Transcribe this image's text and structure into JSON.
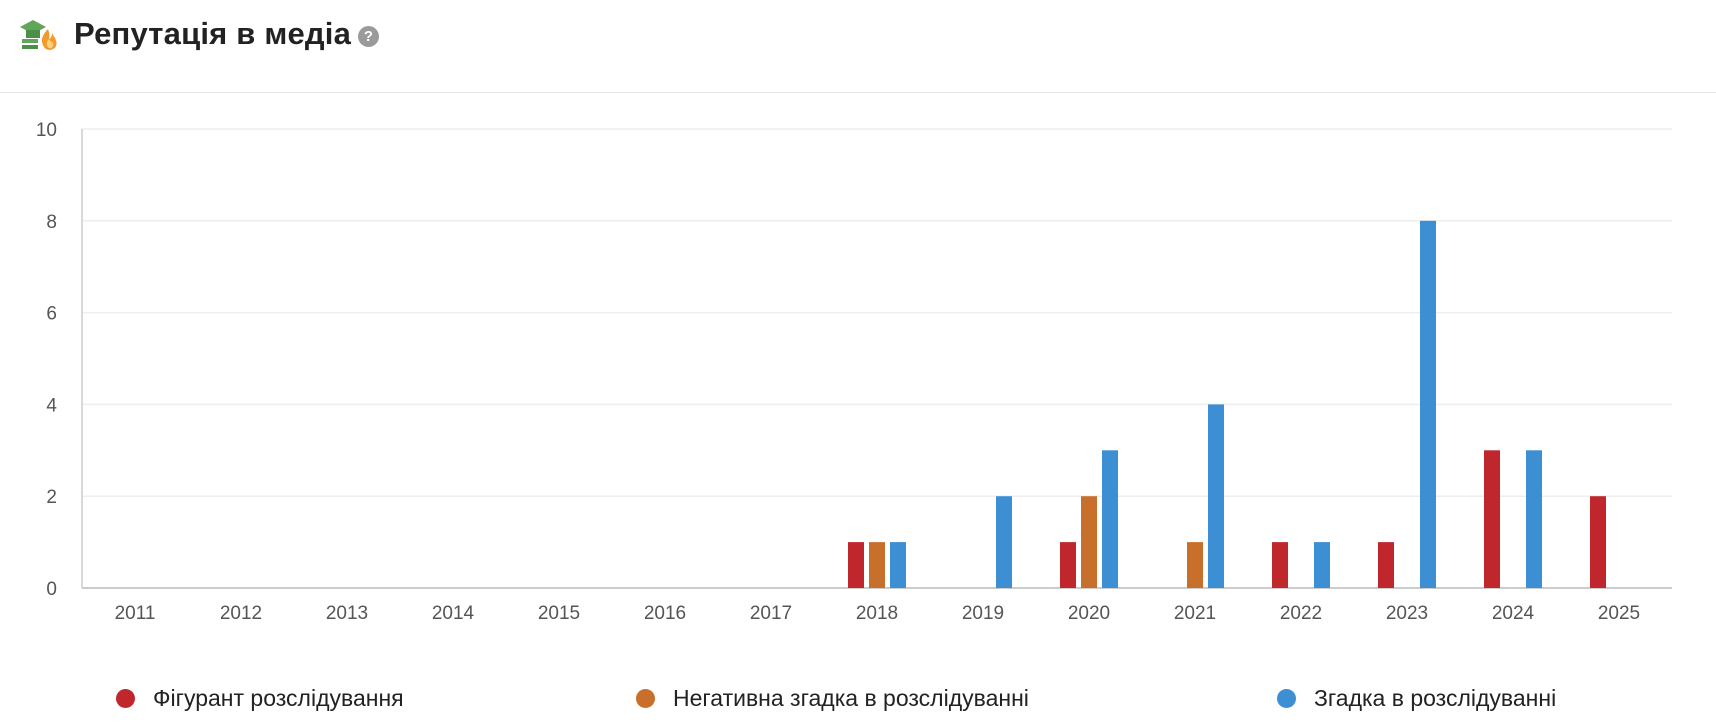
{
  "header": {
    "title": "Репутація в медіа",
    "help_symbol": "?",
    "icon": "graduation-cap-fire-icon"
  },
  "colors": {
    "figurant": "#c0272d",
    "negative": "#c8702b",
    "mention": "#3d8fd4",
    "grid": "#eeeeee",
    "axis": "#cccccc"
  },
  "chart_data": {
    "type": "bar",
    "title": "",
    "xlabel": "",
    "ylabel": "",
    "ylim": [
      0,
      10
    ],
    "yticks": [
      0,
      2,
      4,
      6,
      8,
      10
    ],
    "grid": true,
    "legend_position": "bottom",
    "categories": [
      "2011",
      "2012",
      "2013",
      "2014",
      "2015",
      "2016",
      "2017",
      "2018",
      "2019",
      "2020",
      "2021",
      "2022",
      "2023",
      "2024",
      "2025"
    ],
    "series": [
      {
        "name": "Фігурант розслідування",
        "color": "#c0272d",
        "values": [
          0,
          0,
          0,
          0,
          0,
          0,
          0,
          1,
          0,
          1,
          0,
          1,
          1,
          3,
          2
        ]
      },
      {
        "name": "Негативна згадка в розслідуванні",
        "color": "#c8702b",
        "values": [
          0,
          0,
          0,
          0,
          0,
          0,
          0,
          1,
          0,
          2,
          1,
          0,
          0,
          0,
          0
        ]
      },
      {
        "name": "Згадка в розслідуванні",
        "color": "#3d8fd4",
        "values": [
          0,
          0,
          0,
          0,
          0,
          0,
          0,
          1,
          2,
          3,
          4,
          1,
          8,
          3,
          0
        ]
      }
    ]
  }
}
